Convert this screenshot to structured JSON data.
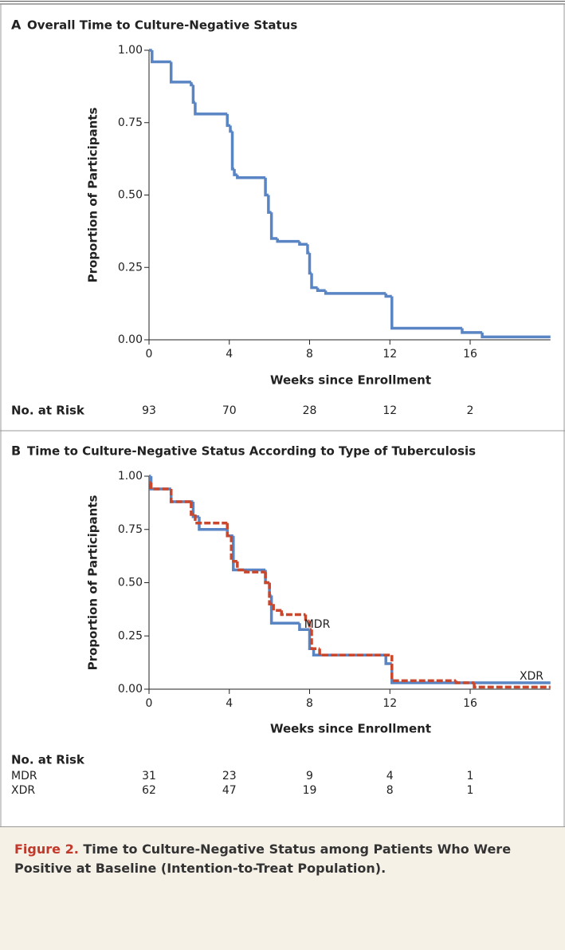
{
  "chart_data": [
    {
      "type": "line",
      "panel": "A",
      "title": "Overall Time to Culture-Negative Status",
      "xlabel": "Weeks since Enrollment",
      "ylabel": "Proportion of Participants",
      "xlim": [
        0,
        20
      ],
      "xticks": [
        0,
        4,
        8,
        12,
        16
      ],
      "ylim": [
        0,
        1
      ],
      "yticks": [
        {
          "value": 0,
          "label": "0.00"
        },
        {
          "value": 0.25,
          "label": "0.25"
        },
        {
          "value": 0.5,
          "label": "0.50"
        },
        {
          "value": 0.75,
          "label": "0.75"
        },
        {
          "value": 1,
          "label": "1.00"
        }
      ],
      "series": [
        {
          "color": "#5a85c4",
          "dash": false,
          "x": [
            0,
            0.15,
            1.1,
            2.1,
            2.2,
            2.3,
            3.9,
            4.05,
            4.15,
            4.25,
            4.4,
            5.8,
            5.95,
            6.1,
            6.4,
            7.5,
            7.9,
            8.0,
            8.1,
            8.4,
            8.8,
            11.8,
            12.1,
            15.6,
            16.6
          ],
          "values": [
            1.0,
            0.96,
            0.89,
            0.88,
            0.82,
            0.78,
            0.74,
            0.72,
            0.59,
            0.57,
            0.56,
            0.5,
            0.44,
            0.35,
            0.34,
            0.33,
            0.3,
            0.23,
            0.18,
            0.17,
            0.16,
            0.15,
            0.04,
            0.025,
            0.01
          ]
        }
      ],
      "at_risk": {
        "title": "No. at Risk",
        "rows": [
          {
            "values": [
              93,
              70,
              28,
              12,
              2
            ]
          }
        ]
      }
    },
    {
      "type": "line",
      "panel": "B",
      "title": "Time to Culture-Negative Status According to Type of Tuberculosis",
      "xlabel": "Weeks since Enrollment",
      "ylabel": "Proportion of Participants",
      "xlim": [
        0,
        20
      ],
      "xticks": [
        0,
        4,
        8,
        12,
        16
      ],
      "ylim": [
        0,
        1
      ],
      "yticks": [
        {
          "value": 0,
          "label": "0.00"
        },
        {
          "value": 0.25,
          "label": "0.25"
        },
        {
          "value": 0.5,
          "label": "0.50"
        },
        {
          "value": 0.75,
          "label": "0.75"
        },
        {
          "value": 1,
          "label": "1.00"
        }
      ],
      "series": [
        {
          "name": "XDR",
          "color": "#5a85c4",
          "dash": false,
          "x": [
            0,
            0.1,
            1.1,
            2.2,
            2.5,
            3.9,
            4.2,
            5.8,
            6.0,
            6.1,
            7.5,
            8.0,
            8.2,
            11.8,
            12.1
          ],
          "values": [
            1.0,
            0.94,
            0.88,
            0.81,
            0.75,
            0.72,
            0.56,
            0.5,
            0.44,
            0.31,
            0.28,
            0.19,
            0.16,
            0.12,
            0.03
          ]
        },
        {
          "name": "MDR",
          "color": "#c9472d",
          "dash": true,
          "x": [
            0,
            0.1,
            1.1,
            2.1,
            2.3,
            3.9,
            4.1,
            4.4,
            4.8,
            5.8,
            6.0,
            6.2,
            6.6,
            7.8,
            8.0,
            8.1,
            8.5,
            12.1,
            15.3,
            16.2
          ],
          "values": [
            0.97,
            0.94,
            0.88,
            0.82,
            0.78,
            0.72,
            0.6,
            0.56,
            0.55,
            0.5,
            0.4,
            0.37,
            0.35,
            0.32,
            0.28,
            0.19,
            0.16,
            0.04,
            0.03,
            0.01
          ]
        }
      ],
      "at_risk": {
        "title": "No. at Risk",
        "rows": [
          {
            "label": "MDR",
            "values": [
              31,
              23,
              9,
              4,
              1
            ]
          },
          {
            "label": "XDR",
            "values": [
              62,
              47,
              19,
              8,
              1
            ]
          }
        ]
      }
    }
  ],
  "caption": {
    "label": "Figure 2.",
    "text": "Time to Culture-Negative Status among Patients Who Were Positive at Baseline (Intention-to-Treat Population)."
  }
}
